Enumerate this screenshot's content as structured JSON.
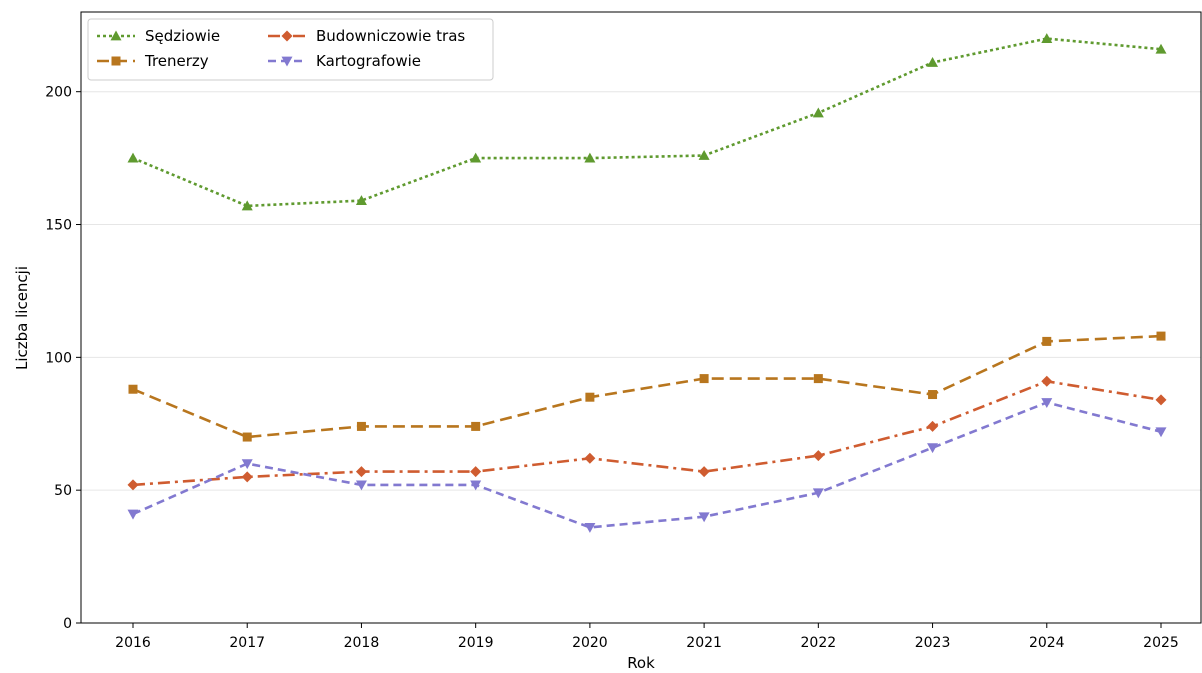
{
  "chart_data": {
    "type": "line",
    "title": "",
    "xlabel": "Rok",
    "ylabel": "Liczba licencji",
    "x": [
      "2016",
      "2017",
      "2018",
      "2019",
      "2020",
      "2021",
      "2022",
      "2023",
      "2024",
      "2025"
    ],
    "ylim": [
      0,
      230
    ],
    "yticks": [
      "0",
      "50",
      "100",
      "150",
      "200"
    ],
    "grid": "horizontal",
    "legend_position": "top-left",
    "series": [
      {
        "name": "Sędziowie",
        "values": [
          175,
          157,
          159,
          175,
          175,
          176,
          192,
          211,
          220,
          216
        ],
        "color": "#5f9a2f",
        "marker": "triangle-up",
        "line_style": "dotted"
      },
      {
        "name": "Trenerzy",
        "values": [
          88,
          70,
          74,
          74,
          85,
          92,
          92,
          86,
          106,
          108
        ],
        "color": "#b8761e",
        "marker": "square",
        "line_style": "long-dash"
      },
      {
        "name": "Budowniczowie tras",
        "values": [
          52,
          55,
          57,
          57,
          62,
          57,
          63,
          74,
          91,
          84
        ],
        "color": "#cf5c30",
        "marker": "diamond",
        "line_style": "dash-dot"
      },
      {
        "name": "Kartografowie",
        "values": [
          41,
          60,
          52,
          52,
          36,
          40,
          49,
          66,
          83,
          72
        ],
        "color": "#8279d0",
        "marker": "triangle-down",
        "line_style": "dashed"
      }
    ]
  }
}
